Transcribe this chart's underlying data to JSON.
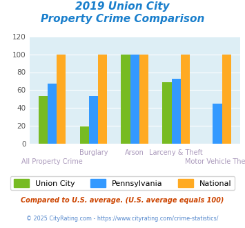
{
  "title_line1": "2019 Union City",
  "title_line2": "Property Crime Comparison",
  "title_color": "#1a7fcc",
  "categories": [
    "All Property Crime",
    "Burglary",
    "Arson",
    "Larceny & Theft",
    "Motor Vehicle Theft"
  ],
  "union_city": [
    53,
    19,
    100,
    69,
    0
  ],
  "pennsylvania": [
    67,
    53,
    100,
    73,
    45
  ],
  "national": [
    100,
    100,
    100,
    100,
    100
  ],
  "color_uc": "#77bb22",
  "color_pa": "#3399ff",
  "color_nat": "#ffaa22",
  "ylim": [
    0,
    120
  ],
  "yticks": [
    0,
    20,
    40,
    60,
    80,
    100,
    120
  ],
  "background_color": "#ddeef5",
  "legend_label_uc": "Union City",
  "legend_label_pa": "Pennsylvania",
  "legend_label_nat": "National",
  "footnote1": "Compared to U.S. average. (U.S. average equals 100)",
  "footnote2": "© 2025 CityRating.com - https://www.cityrating.com/crime-statistics/",
  "footnote1_color": "#cc4400",
  "footnote2_color": "#5588cc",
  "xlabel_color": "#aa99bb",
  "bar_width": 0.22
}
